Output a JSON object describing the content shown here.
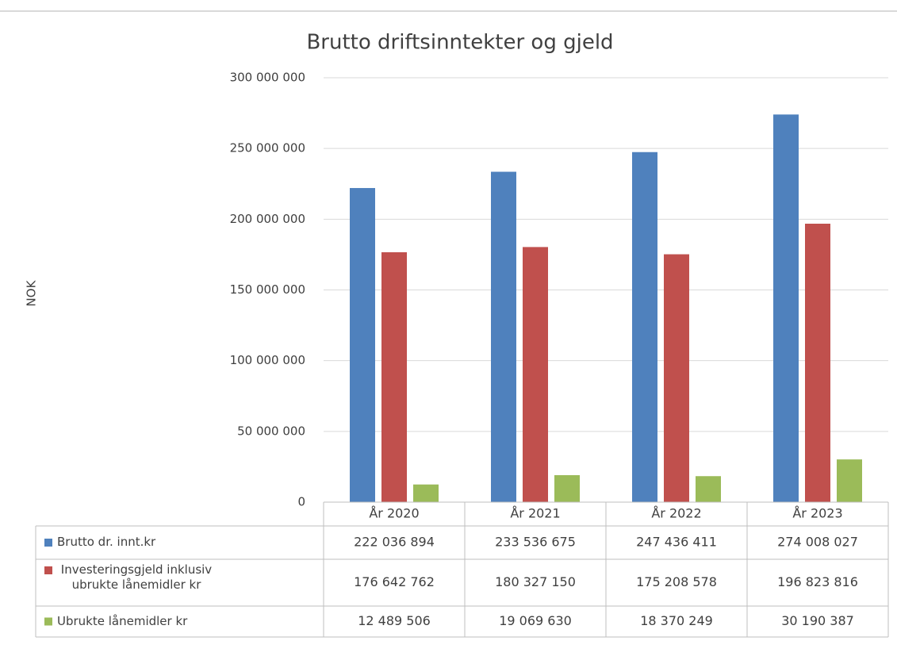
{
  "chart_data": {
    "type": "bar",
    "title": "Brutto driftsinntekter og gjeld",
    "y_label": "NOK",
    "categories": [
      "År 2020",
      "År 2021",
      "År 2022",
      "År 2023"
    ],
    "series": [
      {
        "name": "Brutto dr. innt.kr",
        "color": "#4f81bd",
        "values": [
          222036894,
          233536675,
          247436411,
          274008027
        ],
        "value_labels": [
          "222 036 894",
          "233 536 675",
          "247 436 411",
          "274 008 027"
        ]
      },
      {
        "name": "Investeringsgjeld inklusiv ubrukte lånemidler kr",
        "color": "#c0504d",
        "values": [
          176642762,
          180327150,
          175208578,
          196823816
        ],
        "value_labels": [
          "176 642 762",
          "180 327 150",
          "175 208 578",
          "196 823 816"
        ]
      },
      {
        "name": "Ubrukte lånemidler kr",
        "color": "#9bbb59",
        "values": [
          12489506,
          19069630,
          18370249,
          30190387
        ],
        "value_labels": [
          "12 489 506",
          "19 069 630",
          "18 370 249",
          "30 190 387"
        ]
      }
    ],
    "ylim": [
      0,
      300000000
    ],
    "yticks": [
      0,
      {
        "value": 50000000,
        "label": "50 000 000"
      },
      {
        "value": 100000000,
        "label": "100 000 000"
      },
      {
        "value": 150000000,
        "label": "150 000 000"
      },
      {
        "value": 200000000,
        "label": "200 000 000"
      },
      {
        "value": 250000000,
        "label": "250 000 000"
      },
      {
        "value": 300000000,
        "label": "300 000 000"
      }
    ],
    "grid": true,
    "data_table": true
  }
}
